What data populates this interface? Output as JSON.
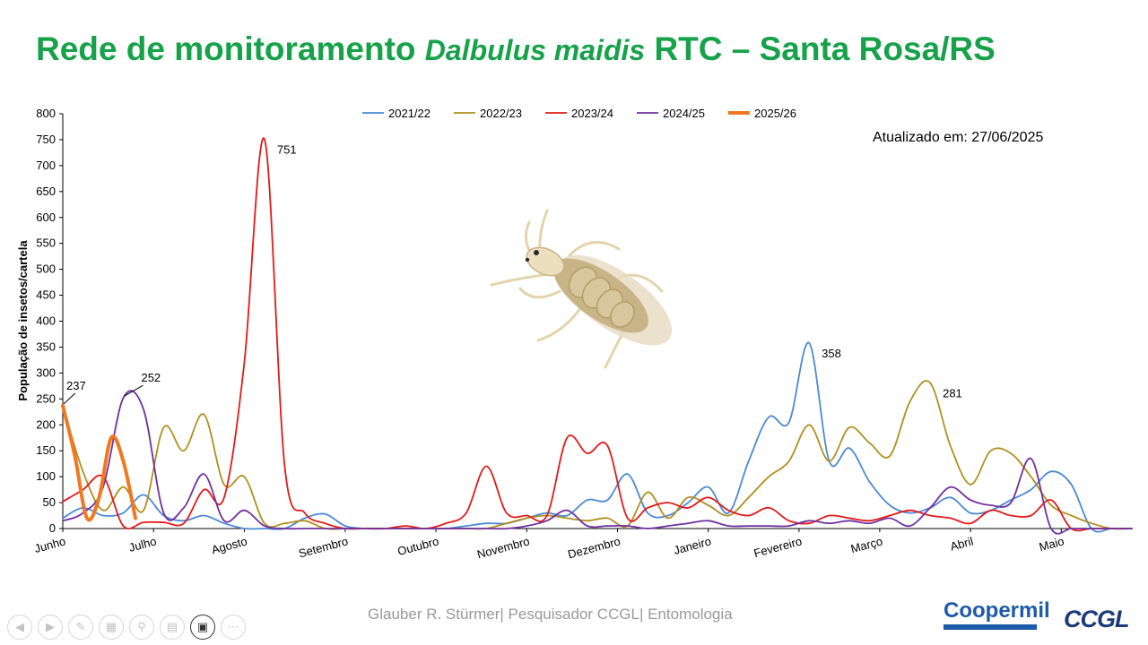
{
  "title": {
    "prefix": "Rede de monitoramento ",
    "species": "Dalbulus maidis",
    "suffix": " RTC – Santa Rosa/RS"
  },
  "updated_label": "Atualizado em: 27/06/2025",
  "footer_text": "Glauber R. Stürmer| Pesquisador CCGL| Entomologia",
  "logos": {
    "coopermil": "Coopermil",
    "ccgl": "CCGL"
  },
  "toolbar_icons": [
    "back-icon",
    "forward-icon",
    "pen-icon",
    "slides-icon",
    "zoom-icon",
    "subtitles-icon",
    "camera-icon",
    "more-icon"
  ],
  "chart_data": {
    "type": "line",
    "ylabel": "População de insetos/cartela",
    "xlabel": "",
    "ylim": [
      0,
      800
    ],
    "yticks": [
      0,
      50,
      100,
      150,
      200,
      250,
      300,
      350,
      400,
      450,
      500,
      550,
      600,
      650,
      700,
      750,
      800
    ],
    "x_range": [
      0,
      53
    ],
    "grid": false,
    "legend_position": "top",
    "months": [
      {
        "label": "Junho",
        "x": 0
      },
      {
        "label": "Julho",
        "x": 4.5
      },
      {
        "label": "Agosto",
        "x": 9
      },
      {
        "label": "Setembro",
        "x": 14
      },
      {
        "label": "Outubro",
        "x": 18.5
      },
      {
        "label": "Novembro",
        "x": 23
      },
      {
        "label": "Dezembro",
        "x": 27.5
      },
      {
        "label": "Janeiro",
        "x": 32
      },
      {
        "label": "Fevereiro",
        "x": 36.5
      },
      {
        "label": "Março",
        "x": 40.5
      },
      {
        "label": "Abril",
        "x": 45
      },
      {
        "label": "Maio",
        "x": 49.5
      }
    ],
    "series": [
      {
        "name": "2021/22",
        "color": "#4a8ad6",
        "width": 1.8,
        "x": [
          0,
          1,
          2,
          3,
          4,
          5,
          6,
          7,
          8,
          9,
          10,
          11,
          12,
          13,
          14,
          15,
          16,
          17,
          18,
          19,
          20,
          21,
          22,
          23,
          24,
          25,
          26,
          27,
          28,
          29,
          30,
          31,
          32,
          33,
          34,
          35,
          36,
          37,
          38,
          39,
          40,
          41,
          42,
          43,
          44,
          45,
          46,
          47,
          48,
          49,
          50,
          51,
          52,
          53
        ],
        "y": [
          20,
          40,
          25,
          30,
          65,
          25,
          15,
          25,
          10,
          0,
          0,
          0,
          20,
          28,
          5,
          0,
          0,
          0,
          0,
          0,
          5,
          10,
          10,
          20,
          30,
          25,
          55,
          55,
          105,
          30,
          25,
          50,
          80,
          30,
          130,
          215,
          205,
          358,
          130,
          155,
          90,
          45,
          30,
          40,
          60,
          30,
          35,
          55,
          75,
          110,
          85,
          0,
          0,
          0
        ]
      },
      {
        "name": "2022/23",
        "color": "#b18f1f",
        "width": 1.8,
        "x": [
          0,
          1,
          2,
          3,
          4,
          5,
          6,
          7,
          8,
          9,
          10,
          11,
          12,
          13,
          14,
          15,
          16,
          17,
          18,
          19,
          20,
          21,
          22,
          23,
          24,
          25,
          26,
          27,
          28,
          29,
          30,
          31,
          32,
          33,
          34,
          35,
          36,
          37,
          38,
          39,
          40,
          41,
          42,
          43,
          44,
          45,
          46,
          47,
          48,
          49,
          50,
          51,
          52,
          53
        ],
        "y": [
          237,
          110,
          35,
          80,
          35,
          195,
          150,
          220,
          85,
          100,
          10,
          10,
          15,
          0,
          0,
          0,
          0,
          0,
          0,
          0,
          0,
          0,
          10,
          20,
          25,
          20,
          15,
          20,
          5,
          70,
          20,
          60,
          45,
          25,
          60,
          100,
          130,
          200,
          130,
          195,
          165,
          140,
          245,
          281,
          160,
          85,
          150,
          145,
          100,
          45,
          25,
          10,
          0,
          0
        ]
      },
      {
        "name": "2023/24",
        "color": "#e31919",
        "width": 1.8,
        "x": [
          0,
          1,
          2,
          3,
          4,
          5,
          6,
          7,
          8,
          9,
          10,
          11,
          12,
          13,
          14,
          15,
          16,
          17,
          18,
          19,
          20,
          21,
          22,
          23,
          24,
          25,
          26,
          27,
          28,
          29,
          30,
          31,
          32,
          33,
          34,
          35,
          36,
          37,
          38,
          39,
          40,
          41,
          42,
          43,
          44,
          45,
          46,
          47,
          48,
          49,
          50,
          51,
          52,
          53
        ],
        "y": [
          52,
          75,
          100,
          5,
          12,
          12,
          10,
          75,
          60,
          320,
          751,
          120,
          30,
          10,
          0,
          0,
          0,
          5,
          0,
          10,
          30,
          120,
          30,
          25,
          25,
          175,
          145,
          160,
          20,
          40,
          50,
          40,
          60,
          35,
          25,
          40,
          15,
          10,
          25,
          20,
          15,
          25,
          35,
          25,
          20,
          10,
          35,
          25,
          25,
          55,
          0,
          0,
          0,
          0
        ]
      },
      {
        "name": "2024/25",
        "color": "#7030a0",
        "width": 1.8,
        "x": [
          0,
          1,
          2,
          3,
          4,
          5,
          6,
          7,
          8,
          9,
          10,
          11,
          12,
          13,
          14,
          15,
          16,
          17,
          18,
          19,
          20,
          21,
          22,
          23,
          24,
          25,
          26,
          27,
          28,
          29,
          30,
          31,
          32,
          33,
          34,
          35,
          36,
          37,
          38,
          39,
          40,
          41,
          42,
          43,
          44,
          45,
          46,
          47,
          48,
          49,
          50,
          51,
          52,
          53
        ],
        "y": [
          15,
          30,
          80,
          252,
          230,
          30,
          40,
          105,
          15,
          35,
          5,
          0,
          0,
          0,
          0,
          0,
          0,
          0,
          0,
          0,
          0,
          0,
          0,
          5,
          15,
          35,
          5,
          5,
          5,
          0,
          5,
          10,
          15,
          5,
          5,
          5,
          5,
          15,
          10,
          15,
          10,
          20,
          5,
          40,
          80,
          55,
          45,
          50,
          135,
          0,
          0,
          0,
          0,
          0
        ]
      },
      {
        "name": "2025/26",
        "color": "#f07820",
        "width": 4,
        "x": [
          0,
          0.6,
          1.2,
          1.8,
          2.4,
          3.0,
          3.6
        ],
        "y": [
          237,
          140,
          20,
          60,
          175,
          130,
          20
        ]
      }
    ],
    "data_labels": [
      {
        "text": "237",
        "x": 0,
        "y": 237
      },
      {
        "text": "252",
        "x": 3,
        "y": 252
      },
      {
        "text": "751",
        "x": 10,
        "y": 751
      },
      {
        "text": "358",
        "x": 37,
        "y": 358
      },
      {
        "text": "281",
        "x": 43,
        "y": 281
      }
    ]
  }
}
